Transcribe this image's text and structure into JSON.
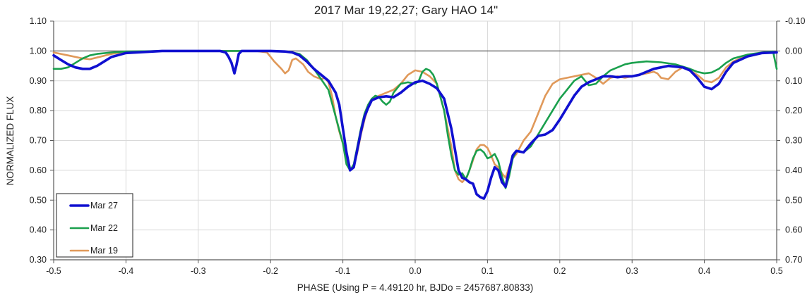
{
  "chart_data": {
    "type": "line",
    "title": "2017 Mar 19,22,27; Gary HAO 14\"",
    "xlabel": "PHASE (Using P = 4.49120 hr, BJDo = 2457687.80833)",
    "ylabel": "NORMALIZED FLUX",
    "xlim": [
      -0.5,
      0.5
    ],
    "ylim": [
      0.3,
      1.1
    ],
    "y2lim": [
      -0.1,
      0.7
    ],
    "grid": true,
    "reference_line": 1.0,
    "legend_position": "bottom-left",
    "x_tick_labels": [
      "-0.5",
      "-0.4",
      "-0.3",
      "-0.2",
      "-0.1",
      "0.0",
      "0.1",
      "0.2",
      "0.3",
      "0.4",
      "0.5"
    ],
    "x_ticks": [
      -0.5,
      -0.4,
      -0.3,
      -0.2,
      -0.1,
      0.0,
      0.1,
      0.2,
      0.3,
      0.4,
      0.5
    ],
    "y_tick_labels": [
      "1.10",
      "1.00",
      "0.90",
      "0.80",
      "0.70",
      "0.60",
      "0.50",
      "0.40",
      "0.30"
    ],
    "y_ticks": [
      1.1,
      1.0,
      0.9,
      0.8,
      0.7,
      0.6,
      0.5,
      0.4,
      0.3
    ],
    "y2_tick_labels": [
      "-0.10",
      "0.00",
      "0.10",
      "0.20",
      "0.30",
      "0.40",
      "0.50",
      "0.60",
      "0.70"
    ],
    "series": [
      {
        "name": "Mar 19",
        "color": "#e0995a",
        "points": [
          [
            -0.5,
            0.995
          ],
          [
            -0.48,
            0.985
          ],
          [
            -0.46,
            0.975
          ],
          [
            -0.45,
            0.972
          ],
          [
            -0.44,
            0.978
          ],
          [
            -0.42,
            0.99
          ],
          [
            -0.4,
            0.997
          ],
          [
            -0.35,
            1.0
          ],
          [
            -0.25,
            1.0
          ],
          [
            -0.22,
            1.0
          ],
          [
            -0.205,
            0.995
          ],
          [
            -0.195,
            0.965
          ],
          [
            -0.185,
            0.94
          ],
          [
            -0.18,
            0.925
          ],
          [
            -0.175,
            0.935
          ],
          [
            -0.17,
            0.97
          ],
          [
            -0.165,
            0.975
          ],
          [
            -0.155,
            0.955
          ],
          [
            -0.148,
            0.93
          ],
          [
            -0.14,
            0.915
          ],
          [
            -0.13,
            0.905
          ],
          [
            -0.125,
            0.91
          ],
          [
            -0.12,
            0.895
          ],
          [
            -0.115,
            0.85
          ],
          [
            -0.11,
            0.78
          ],
          [
            -0.105,
            0.73
          ],
          [
            -0.1,
            0.69
          ],
          [
            -0.095,
            0.64
          ],
          [
            -0.09,
            0.6
          ],
          [
            -0.085,
            0.61
          ],
          [
            -0.08,
            0.66
          ],
          [
            -0.075,
            0.72
          ],
          [
            -0.07,
            0.77
          ],
          [
            -0.065,
            0.81
          ],
          [
            -0.06,
            0.835
          ],
          [
            -0.05,
            0.85
          ],
          [
            -0.04,
            0.86
          ],
          [
            -0.03,
            0.87
          ],
          [
            -0.02,
            0.89
          ],
          [
            -0.01,
            0.92
          ],
          [
            0.0,
            0.935
          ],
          [
            0.01,
            0.93
          ],
          [
            0.02,
            0.915
          ],
          [
            0.03,
            0.89
          ],
          [
            0.04,
            0.8
          ],
          [
            0.05,
            0.68
          ],
          [
            0.055,
            0.6
          ],
          [
            0.06,
            0.57
          ],
          [
            0.065,
            0.56
          ],
          [
            0.072,
            0.58
          ],
          [
            0.078,
            0.62
          ],
          [
            0.085,
            0.67
          ],
          [
            0.09,
            0.685
          ],
          [
            0.095,
            0.685
          ],
          [
            0.1,
            0.675
          ],
          [
            0.105,
            0.65
          ],
          [
            0.11,
            0.62
          ],
          [
            0.115,
            0.61
          ],
          [
            0.12,
            0.59
          ],
          [
            0.125,
            0.575
          ],
          [
            0.13,
            0.61
          ],
          [
            0.135,
            0.64
          ],
          [
            0.14,
            0.655
          ],
          [
            0.15,
            0.7
          ],
          [
            0.16,
            0.73
          ],
          [
            0.17,
            0.79
          ],
          [
            0.18,
            0.85
          ],
          [
            0.19,
            0.89
          ],
          [
            0.2,
            0.905
          ],
          [
            0.21,
            0.91
          ],
          [
            0.22,
            0.915
          ],
          [
            0.23,
            0.92
          ],
          [
            0.24,
            0.925
          ],
          [
            0.25,
            0.91
          ],
          [
            0.26,
            0.89
          ],
          [
            0.27,
            0.91
          ],
          [
            0.28,
            0.915
          ],
          [
            0.29,
            0.91
          ],
          [
            0.3,
            0.915
          ],
          [
            0.31,
            0.92
          ],
          [
            0.32,
            0.925
          ],
          [
            0.33,
            0.93
          ],
          [
            0.335,
            0.925
          ],
          [
            0.34,
            0.91
          ],
          [
            0.35,
            0.905
          ],
          [
            0.36,
            0.93
          ],
          [
            0.37,
            0.945
          ],
          [
            0.38,
            0.935
          ],
          [
            0.39,
            0.92
          ],
          [
            0.4,
            0.9
          ],
          [
            0.41,
            0.895
          ],
          [
            0.42,
            0.91
          ],
          [
            0.43,
            0.945
          ],
          [
            0.44,
            0.965
          ],
          [
            0.46,
            0.985
          ],
          [
            0.48,
            0.993
          ],
          [
            0.5,
            0.995
          ]
        ]
      },
      {
        "name": "Mar 22",
        "color": "#1aa04d",
        "points": [
          [
            -0.5,
            0.94
          ],
          [
            -0.49,
            0.94
          ],
          [
            -0.48,
            0.945
          ],
          [
            -0.47,
            0.96
          ],
          [
            -0.46,
            0.975
          ],
          [
            -0.45,
            0.985
          ],
          [
            -0.44,
            0.99
          ],
          [
            -0.42,
            0.995
          ],
          [
            -0.4,
            0.998
          ],
          [
            -0.35,
            1.0
          ],
          [
            -0.25,
            1.0
          ],
          [
            -0.2,
            1.0
          ],
          [
            -0.18,
            0.998
          ],
          [
            -0.17,
            0.995
          ],
          [
            -0.16,
            0.99
          ],
          [
            -0.15,
            0.97
          ],
          [
            -0.14,
            0.94
          ],
          [
            -0.13,
            0.905
          ],
          [
            -0.12,
            0.87
          ],
          [
            -0.11,
            0.78
          ],
          [
            -0.1,
            0.69
          ],
          [
            -0.095,
            0.62
          ],
          [
            -0.09,
            0.6
          ],
          [
            -0.085,
            0.62
          ],
          [
            -0.08,
            0.68
          ],
          [
            -0.075,
            0.74
          ],
          [
            -0.07,
            0.79
          ],
          [
            -0.065,
            0.82
          ],
          [
            -0.06,
            0.84
          ],
          [
            -0.055,
            0.85
          ],
          [
            -0.05,
            0.845
          ],
          [
            -0.045,
            0.83
          ],
          [
            -0.04,
            0.82
          ],
          [
            -0.035,
            0.83
          ],
          [
            -0.03,
            0.86
          ],
          [
            -0.02,
            0.89
          ],
          [
            -0.01,
            0.895
          ],
          [
            0.0,
            0.89
          ],
          [
            0.005,
            0.9
          ],
          [
            0.01,
            0.93
          ],
          [
            0.015,
            0.94
          ],
          [
            0.02,
            0.935
          ],
          [
            0.025,
            0.92
          ],
          [
            0.03,
            0.89
          ],
          [
            0.04,
            0.8
          ],
          [
            0.045,
            0.72
          ],
          [
            0.05,
            0.65
          ],
          [
            0.055,
            0.6
          ],
          [
            0.06,
            0.585
          ],
          [
            0.065,
            0.59
          ],
          [
            0.07,
            0.57
          ],
          [
            0.075,
            0.6
          ],
          [
            0.08,
            0.64
          ],
          [
            0.085,
            0.665
          ],
          [
            0.09,
            0.67
          ],
          [
            0.095,
            0.66
          ],
          [
            0.1,
            0.64
          ],
          [
            0.105,
            0.645
          ],
          [
            0.11,
            0.655
          ],
          [
            0.115,
            0.63
          ],
          [
            0.12,
            0.58
          ],
          [
            0.125,
            0.54
          ],
          [
            0.13,
            0.58
          ],
          [
            0.135,
            0.64
          ],
          [
            0.14,
            0.665
          ],
          [
            0.15,
            0.66
          ],
          [
            0.16,
            0.68
          ],
          [
            0.17,
            0.72
          ],
          [
            0.18,
            0.76
          ],
          [
            0.19,
            0.8
          ],
          [
            0.2,
            0.84
          ],
          [
            0.21,
            0.87
          ],
          [
            0.22,
            0.9
          ],
          [
            0.23,
            0.915
          ],
          [
            0.235,
            0.9
          ],
          [
            0.24,
            0.885
          ],
          [
            0.25,
            0.89
          ],
          [
            0.26,
            0.915
          ],
          [
            0.27,
            0.935
          ],
          [
            0.28,
            0.945
          ],
          [
            0.29,
            0.955
          ],
          [
            0.3,
            0.96
          ],
          [
            0.32,
            0.965
          ],
          [
            0.34,
            0.962
          ],
          [
            0.36,
            0.955
          ],
          [
            0.38,
            0.94
          ],
          [
            0.39,
            0.93
          ],
          [
            0.4,
            0.925
          ],
          [
            0.41,
            0.928
          ],
          [
            0.42,
            0.94
          ],
          [
            0.43,
            0.96
          ],
          [
            0.44,
            0.975
          ],
          [
            0.46,
            0.988
          ],
          [
            0.48,
            0.995
          ],
          [
            0.495,
            0.998
          ],
          [
            0.5,
            0.94
          ]
        ]
      },
      {
        "name": "Mar 27",
        "color": "#1010d0",
        "points": [
          [
            -0.5,
            0.985
          ],
          [
            -0.49,
            0.97
          ],
          [
            -0.48,
            0.955
          ],
          [
            -0.47,
            0.945
          ],
          [
            -0.46,
            0.94
          ],
          [
            -0.45,
            0.94
          ],
          [
            -0.44,
            0.95
          ],
          [
            -0.43,
            0.965
          ],
          [
            -0.42,
            0.98
          ],
          [
            -0.4,
            0.993
          ],
          [
            -0.35,
            1.0
          ],
          [
            -0.3,
            1.0
          ],
          [
            -0.27,
            1.0
          ],
          [
            -0.262,
            0.995
          ],
          [
            -0.258,
            0.98
          ],
          [
            -0.254,
            0.96
          ],
          [
            -0.25,
            0.925
          ],
          [
            -0.247,
            0.955
          ],
          [
            -0.244,
            0.99
          ],
          [
            -0.24,
            1.0
          ],
          [
            -0.2,
            1.0
          ],
          [
            -0.18,
            0.998
          ],
          [
            -0.17,
            0.995
          ],
          [
            -0.16,
            0.985
          ],
          [
            -0.15,
            0.965
          ],
          [
            -0.14,
            0.94
          ],
          [
            -0.13,
            0.92
          ],
          [
            -0.12,
            0.9
          ],
          [
            -0.11,
            0.86
          ],
          [
            -0.105,
            0.82
          ],
          [
            -0.1,
            0.74
          ],
          [
            -0.095,
            0.66
          ],
          [
            -0.09,
            0.6
          ],
          [
            -0.085,
            0.61
          ],
          [
            -0.08,
            0.67
          ],
          [
            -0.075,
            0.73
          ],
          [
            -0.07,
            0.78
          ],
          [
            -0.065,
            0.81
          ],
          [
            -0.06,
            0.835
          ],
          [
            -0.05,
            0.845
          ],
          [
            -0.04,
            0.848
          ],
          [
            -0.03,
            0.845
          ],
          [
            -0.02,
            0.86
          ],
          [
            -0.01,
            0.88
          ],
          [
            0.0,
            0.895
          ],
          [
            0.01,
            0.9
          ],
          [
            0.02,
            0.89
          ],
          [
            0.03,
            0.875
          ],
          [
            0.04,
            0.84
          ],
          [
            0.05,
            0.74
          ],
          [
            0.055,
            0.67
          ],
          [
            0.06,
            0.6
          ],
          [
            0.065,
            0.575
          ],
          [
            0.07,
            0.57
          ],
          [
            0.075,
            0.56
          ],
          [
            0.08,
            0.555
          ],
          [
            0.085,
            0.52
          ],
          [
            0.09,
            0.51
          ],
          [
            0.095,
            0.505
          ],
          [
            0.1,
            0.53
          ],
          [
            0.105,
            0.575
          ],
          [
            0.11,
            0.61
          ],
          [
            0.115,
            0.6
          ],
          [
            0.12,
            0.56
          ],
          [
            0.125,
            0.545
          ],
          [
            0.13,
            0.6
          ],
          [
            0.135,
            0.65
          ],
          [
            0.14,
            0.665
          ],
          [
            0.15,
            0.66
          ],
          [
            0.16,
            0.69
          ],
          [
            0.17,
            0.715
          ],
          [
            0.18,
            0.72
          ],
          [
            0.19,
            0.735
          ],
          [
            0.2,
            0.77
          ],
          [
            0.21,
            0.81
          ],
          [
            0.22,
            0.85
          ],
          [
            0.23,
            0.88
          ],
          [
            0.24,
            0.895
          ],
          [
            0.25,
            0.905
          ],
          [
            0.26,
            0.915
          ],
          [
            0.27,
            0.915
          ],
          [
            0.28,
            0.912
          ],
          [
            0.29,
            0.915
          ],
          [
            0.3,
            0.915
          ],
          [
            0.31,
            0.92
          ],
          [
            0.32,
            0.93
          ],
          [
            0.33,
            0.94
          ],
          [
            0.35,
            0.95
          ],
          [
            0.37,
            0.945
          ],
          [
            0.38,
            0.935
          ],
          [
            0.39,
            0.91
          ],
          [
            0.4,
            0.88
          ],
          [
            0.41,
            0.872
          ],
          [
            0.42,
            0.89
          ],
          [
            0.43,
            0.93
          ],
          [
            0.44,
            0.96
          ],
          [
            0.46,
            0.982
          ],
          [
            0.48,
            0.993
          ],
          [
            0.5,
            0.995
          ]
        ]
      }
    ],
    "legend_order": [
      "Mar 27",
      "Mar 22",
      "Mar 19"
    ]
  }
}
